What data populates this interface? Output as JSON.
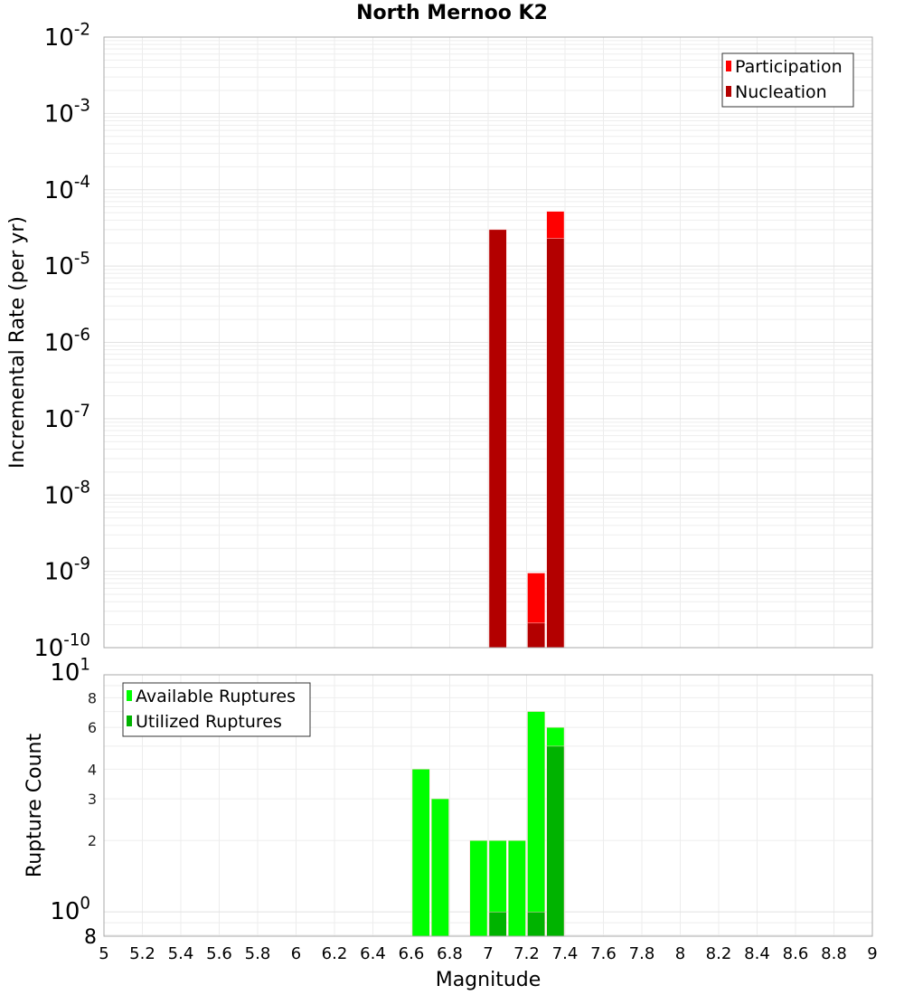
{
  "chart_data": [
    {
      "type": "bar",
      "title": "North Mernoo K2",
      "xlabel": "",
      "ylabel": "Incremental Rate (per yr)",
      "yscale": "log",
      "ylim": [
        1e-10,
        0.01
      ],
      "xlim": [
        5,
        9
      ],
      "bar_width": 0.1,
      "grid": true,
      "legend_position": "upper-right",
      "y_tick_labels": [
        "10^-2",
        "10^-3",
        "10^-4",
        "10^-5",
        "10^-6",
        "10^-7",
        "10^-8",
        "10^-9",
        "10^-10"
      ],
      "series": [
        {
          "name": "Participation",
          "color": "#ff0000",
          "x": [
            7.05,
            7.25,
            7.35
          ],
          "values": [
            3e-05,
            9.5e-10,
            5.2e-05
          ]
        },
        {
          "name": "Nucleation",
          "color": "#b30000",
          "x": [
            7.05,
            7.25,
            7.35
          ],
          "values": [
            3e-05,
            2.1e-10,
            2.3e-05
          ]
        }
      ]
    },
    {
      "type": "bar",
      "title": "",
      "xlabel": "Magnitude",
      "ylabel": "Rupture Count",
      "yscale": "log",
      "ylim": [
        0.79,
        10
      ],
      "xlim": [
        5,
        9
      ],
      "bar_width": 0.1,
      "grid": true,
      "legend_position": "upper-left",
      "x_tick_labels": [
        "5",
        "5.2",
        "5.4",
        "5.6",
        "5.8",
        "6",
        "6.2",
        "6.4",
        "6.6",
        "6.8",
        "7",
        "7.2",
        "7.4",
        "7.6",
        "7.8",
        "8",
        "8.2",
        "8.4",
        "8.6",
        "8.8",
        "9"
      ],
      "y_tick_labels": [
        "10^1",
        "8",
        "6",
        "4",
        "3",
        "2",
        "10^0",
        "8"
      ],
      "series": [
        {
          "name": "Available Ruptures",
          "color": "#00ff00",
          "x": [
            6.65,
            6.75,
            6.95,
            7.05,
            7.15,
            7.25,
            7.35
          ],
          "values": [
            4,
            3,
            2,
            2,
            2,
            7,
            6
          ]
        },
        {
          "name": "Utilized Ruptures",
          "color": "#00b300",
          "x": [
            7.05,
            7.25,
            7.35
          ],
          "values": [
            1,
            1,
            5
          ]
        }
      ]
    }
  ]
}
